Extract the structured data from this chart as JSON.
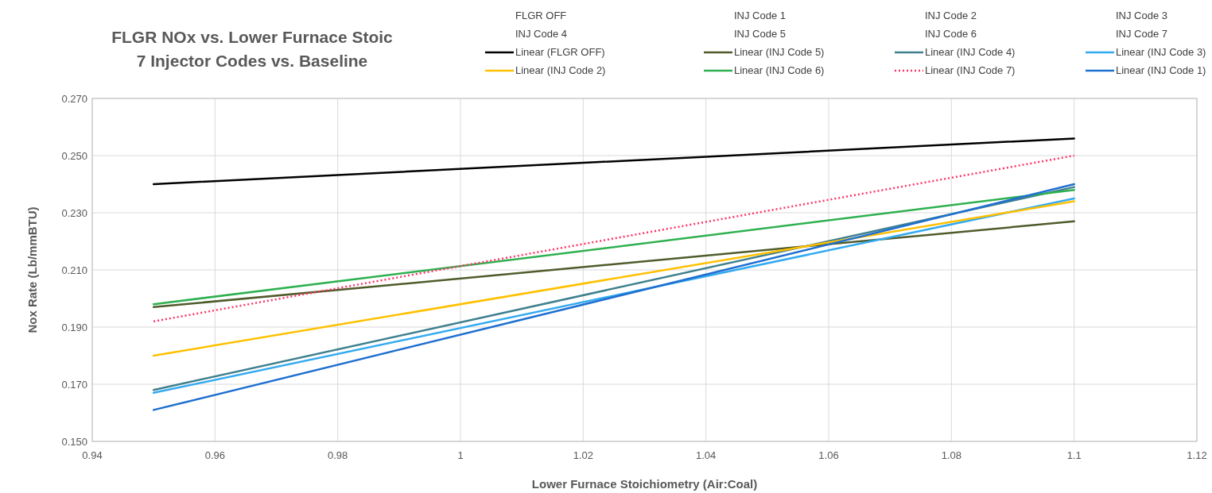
{
  "chart_data": {
    "type": "line",
    "title": "FLGR NOx vs. Lower Furnace Stoic",
    "subtitle": "7 Injector Codes vs. Baseline",
    "xlabel": "Lower Furnace Stoichiometry (Air:Coal)",
    "ylabel": "Nox Rate (Lb/mmBTU)",
    "annotations": [
      "FLGR OFF",
      "INJ Code 1",
      "INJ Code 2",
      "INJ Code 3",
      "INJ Code 4",
      "INJ Code 5",
      "INJ Code 6",
      "INJ Code 7"
    ],
    "x": [
      0.95,
      1.1
    ],
    "series": [
      {
        "name": "Linear (FLGR OFF)",
        "color": "#000000",
        "values": [
          0.24,
          0.256
        ]
      },
      {
        "name": "Linear (INJ Code 5)",
        "color": "#4f5b2b",
        "values": [
          0.197,
          0.227
        ]
      },
      {
        "name": "Linear (INJ Code 4)",
        "color": "#3f808e",
        "values": [
          0.168,
          0.239
        ]
      },
      {
        "name": "Linear (INJ Code 3)",
        "color": "#33aaf0",
        "values": [
          0.167,
          0.235
        ]
      },
      {
        "name": "Linear (INJ Code 2)",
        "color": "#ffc000",
        "values": [
          0.18,
          0.234
        ]
      },
      {
        "name": "Linear (INJ Code 6)",
        "color": "#2eb050",
        "values": [
          0.198,
          0.238
        ]
      },
      {
        "name": "Linear (INJ Code 7)",
        "color": "#ff3366",
        "values": [
          0.192,
          0.25
        ],
        "line_style": "dotted"
      },
      {
        "name": "Linear (INJ Code 1)",
        "color": "#1f6fd0",
        "values": [
          0.161,
          0.24
        ]
      }
    ],
    "xlim": [
      0.94,
      1.12
    ],
    "xticks": [
      0.94,
      0.96,
      0.98,
      1,
      1.02,
      1.04,
      1.06,
      1.08,
      1.1,
      1.12
    ],
    "ylim": [
      0.15,
      0.27
    ],
    "yticks": [
      {
        "value": 0.15,
        "label": "0.150"
      },
      {
        "value": 0.17,
        "label": "0.170"
      },
      {
        "value": 0.19,
        "label": "0.190"
      },
      {
        "value": 0.21,
        "label": "0.210"
      },
      {
        "value": 0.23,
        "label": "0.230"
      },
      {
        "value": 0.25,
        "label": "0.250"
      },
      {
        "value": 0.27,
        "label": "0.270"
      }
    ],
    "grid": true,
    "legend": "top",
    "line_style": "solid",
    "marker": "none"
  }
}
